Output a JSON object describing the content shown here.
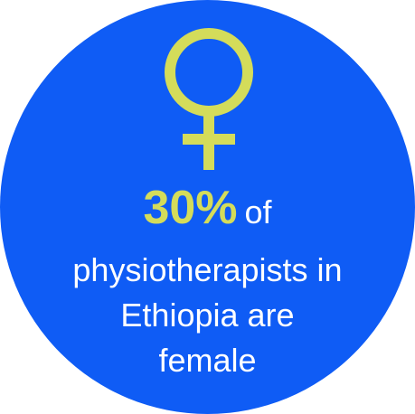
{
  "colors": {
    "background": "#ffffff",
    "circle": "#0f5cf5",
    "accent": "#d4dc5a",
    "text": "#ffffff"
  },
  "icon": "female-symbol-icon",
  "stat": {
    "value": "30%",
    "of_word": "of",
    "line2": "physiotherapists in",
    "line3": "Ethiopia are",
    "line4": "female"
  }
}
